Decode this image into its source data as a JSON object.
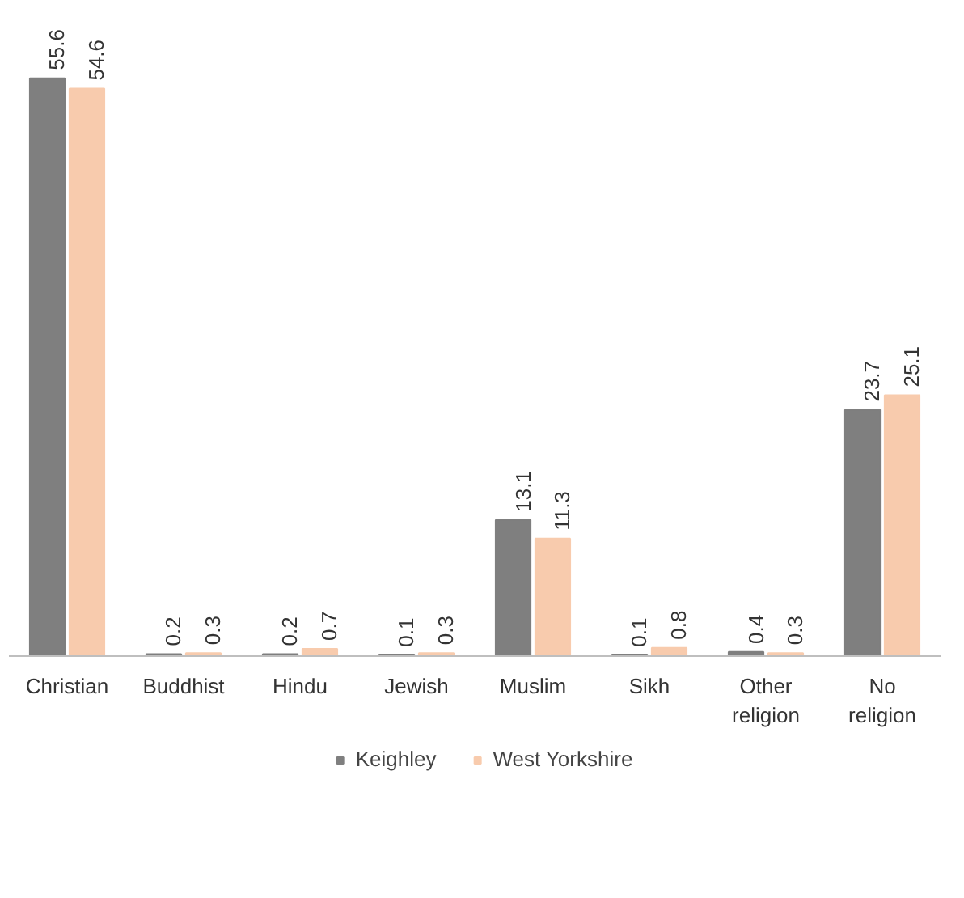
{
  "chart_data": {
    "type": "bar",
    "categories": [
      "Christian",
      "Buddhist",
      "Hindu",
      "Jewish",
      "Muslim",
      "Sikh",
      "Other religion",
      "No religion"
    ],
    "series": [
      {
        "name": "Keighley",
        "color": "#7f7f7f",
        "values": [
          55.6,
          0.2,
          0.2,
          0.1,
          13.1,
          0.1,
          0.4,
          23.7
        ]
      },
      {
        "name": "West Yorkshire",
        "color": "#f8cbad",
        "values": [
          54.6,
          0.3,
          0.7,
          0.3,
          11.3,
          0.8,
          0.3,
          25.1
        ]
      }
    ],
    "data_labels": true,
    "grid": false,
    "legend": "bottom"
  }
}
